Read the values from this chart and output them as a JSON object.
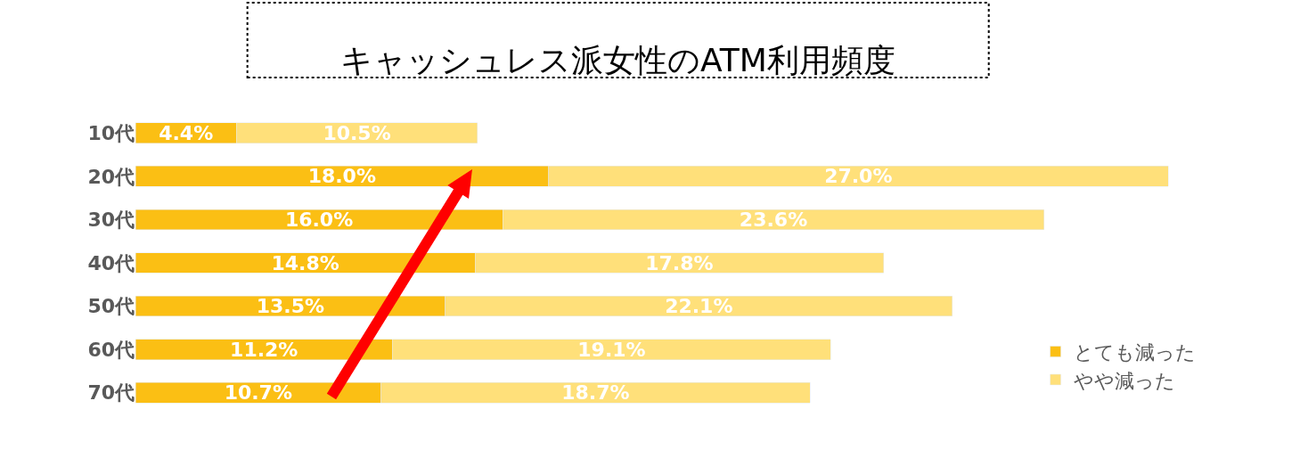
{
  "chart_data": {
    "type": "bar",
    "title": "キャッシュレス派女性のATM利用頻度",
    "orientation": "horizontal",
    "stacked": true,
    "legend": "right",
    "categories": [
      "10代",
      "20代",
      "30代",
      "40代",
      "50代",
      "60代",
      "70代"
    ],
    "series": [
      {
        "name": "とても減った",
        "color": "#fbbf14",
        "values": [
          4.4,
          18.0,
          16.0,
          14.8,
          13.5,
          11.2,
          10.7
        ],
        "value_labels": [
          "4.4%",
          "18.0%",
          "16.0%",
          "14.8%",
          "13.5%",
          "11.2%",
          "10.7%"
        ]
      },
      {
        "name": "やや減った",
        "color": "#ffe07a",
        "values": [
          10.5,
          27.0,
          23.6,
          17.8,
          22.1,
          19.1,
          18.7
        ],
        "value_labels": [
          "10.5%",
          "27.0%",
          "23.6%",
          "17.8%",
          "22.1%",
          "19.1%",
          "18.7%"
        ]
      }
    ]
  }
}
